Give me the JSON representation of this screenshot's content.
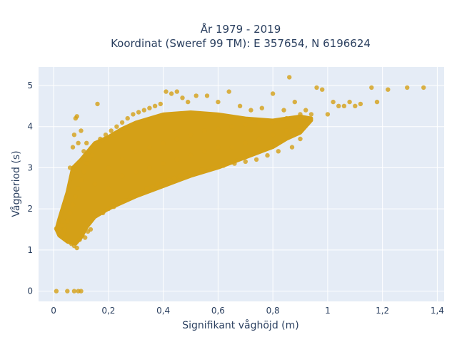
{
  "chart_data": {
    "type": "scatter",
    "title_line1": "År 1979 - 2019",
    "title_line2": "Koordinat (Sweref 99 TM): E 357654, N 6196624",
    "xlabel": "Signifikant våghöjd (m)",
    "ylabel": "Vågperiod (s)",
    "xlim": [
      -0.055,
      1.425
    ],
    "ylim": [
      -0.25,
      5.45
    ],
    "x_ticks": [
      0,
      0.2,
      0.4,
      0.6,
      0.8,
      1,
      1.2,
      1.4
    ],
    "x_tick_labels": [
      "0",
      "0,2",
      "0,4",
      "0,6",
      "0,8",
      "1",
      "1,2",
      "1,4"
    ],
    "y_ticks": [
      0,
      1,
      2,
      3,
      4,
      5
    ],
    "y_tick_labels": [
      "0",
      "1",
      "2",
      "3",
      "4",
      "5"
    ],
    "grid": true,
    "marker_color": "#D4A017",
    "plot_bg": "#E5ECF6",
    "series": [
      {
        "points": [
          [
            0.01,
            0.0
          ],
          [
            0.05,
            0.0
          ],
          [
            0.075,
            0.0
          ],
          [
            0.09,
            0.0
          ],
          [
            0.1,
            0.0
          ],
          [
            0.01,
            1.52
          ],
          [
            0.015,
            1.48
          ],
          [
            0.02,
            1.55
          ],
          [
            0.025,
            1.45
          ],
          [
            0.03,
            1.6
          ],
          [
            0.035,
            1.4
          ],
          [
            0.04,
            1.5
          ],
          [
            0.045,
            1.3
          ],
          [
            0.05,
            1.7
          ],
          [
            0.055,
            1.2
          ],
          [
            0.06,
            1.9
          ],
          [
            0.065,
            1.15
          ],
          [
            0.07,
            2.1
          ],
          [
            0.075,
            1.1
          ],
          [
            0.08,
            2.3
          ],
          [
            0.085,
            1.05
          ],
          [
            0.09,
            2.5
          ],
          [
            0.095,
            1.25
          ],
          [
            0.1,
            2.7
          ],
          [
            0.105,
            1.35
          ],
          [
            0.11,
            2.9
          ],
          [
            0.115,
            1.3
          ],
          [
            0.12,
            3.1
          ],
          [
            0.125,
            1.45
          ],
          [
            0.13,
            3.2
          ],
          [
            0.135,
            1.5
          ],
          [
            0.14,
            3.3
          ],
          [
            0.06,
            3.0
          ],
          [
            0.07,
            3.5
          ],
          [
            0.075,
            3.8
          ],
          [
            0.08,
            4.2
          ],
          [
            0.085,
            4.25
          ],
          [
            0.09,
            3.6
          ],
          [
            0.1,
            3.9
          ],
          [
            0.11,
            3.4
          ],
          [
            0.12,
            3.6
          ],
          [
            0.15,
            3.5
          ],
          [
            0.16,
            4.55
          ],
          [
            0.17,
            3.7
          ],
          [
            0.18,
            1.9
          ],
          [
            0.19,
            3.8
          ],
          [
            0.2,
            2.0
          ],
          [
            0.21,
            3.9
          ],
          [
            0.22,
            2.05
          ],
          [
            0.23,
            4.0
          ],
          [
            0.24,
            2.15
          ],
          [
            0.25,
            4.1
          ],
          [
            0.26,
            2.2
          ],
          [
            0.27,
            4.2
          ],
          [
            0.28,
            2.3
          ],
          [
            0.29,
            4.3
          ],
          [
            0.3,
            2.35
          ],
          [
            0.31,
            4.35
          ],
          [
            0.32,
            2.4
          ],
          [
            0.33,
            4.4
          ],
          [
            0.34,
            2.5
          ],
          [
            0.35,
            4.45
          ],
          [
            0.36,
            2.55
          ],
          [
            0.37,
            4.5
          ],
          [
            0.38,
            2.6
          ],
          [
            0.39,
            4.55
          ],
          [
            0.4,
            2.65
          ],
          [
            0.41,
            4.85
          ],
          [
            0.42,
            2.7
          ],
          [
            0.43,
            4.8
          ],
          [
            0.44,
            2.75
          ],
          [
            0.45,
            4.85
          ],
          [
            0.46,
            2.8
          ],
          [
            0.47,
            4.7
          ],
          [
            0.48,
            2.85
          ],
          [
            0.49,
            4.6
          ],
          [
            0.5,
            2.9
          ],
          [
            0.52,
            4.75
          ],
          [
            0.54,
            2.95
          ],
          [
            0.56,
            4.75
          ],
          [
            0.58,
            3.0
          ],
          [
            0.6,
            4.6
          ],
          [
            0.62,
            3.05
          ],
          [
            0.64,
            4.85
          ],
          [
            0.66,
            3.1
          ],
          [
            0.68,
            4.5
          ],
          [
            0.7,
            3.15
          ],
          [
            0.72,
            4.4
          ],
          [
            0.74,
            3.2
          ],
          [
            0.76,
            4.45
          ],
          [
            0.78,
            3.3
          ],
          [
            0.8,
            4.8
          ],
          [
            0.82,
            3.4
          ],
          [
            0.84,
            4.4
          ],
          [
            0.86,
            5.2
          ],
          [
            0.87,
            3.5
          ],
          [
            0.88,
            4.6
          ],
          [
            0.9,
            3.7
          ],
          [
            0.92,
            4.4
          ],
          [
            0.94,
            4.3
          ],
          [
            0.96,
            4.95
          ],
          [
            0.98,
            4.9
          ],
          [
            1.0,
            4.3
          ],
          [
            1.02,
            4.6
          ],
          [
            1.04,
            4.5
          ],
          [
            1.06,
            4.5
          ],
          [
            1.08,
            4.6
          ],
          [
            1.1,
            4.5
          ],
          [
            1.12,
            4.55
          ],
          [
            1.16,
            4.95
          ],
          [
            1.18,
            4.6
          ],
          [
            1.22,
            4.9
          ],
          [
            1.29,
            4.95
          ],
          [
            1.35,
            4.95
          ],
          [
            0.2,
            3.0
          ],
          [
            0.25,
            3.2
          ],
          [
            0.3,
            3.4
          ],
          [
            0.35,
            3.5
          ],
          [
            0.4,
            3.6
          ],
          [
            0.45,
            3.7
          ],
          [
            0.5,
            3.8
          ],
          [
            0.55,
            3.9
          ],
          [
            0.6,
            3.95
          ],
          [
            0.65,
            4.0
          ],
          [
            0.7,
            4.05
          ],
          [
            0.75,
            4.1
          ],
          [
            0.8,
            4.1
          ],
          [
            0.85,
            4.2
          ],
          [
            0.9,
            4.3
          ],
          [
            0.15,
            2.6
          ],
          [
            0.2,
            2.5
          ],
          [
            0.25,
            2.8
          ],
          [
            0.3,
            2.9
          ],
          [
            0.35,
            3.0
          ],
          [
            0.4,
            3.1
          ],
          [
            0.45,
            3.2
          ],
          [
            0.5,
            3.3
          ],
          [
            0.55,
            3.4
          ],
          [
            0.6,
            3.5
          ],
          [
            0.65,
            3.5
          ],
          [
            0.7,
            3.6
          ],
          [
            0.75,
            3.7
          ],
          [
            0.8,
            3.8
          ],
          [
            0.85,
            3.9
          ],
          [
            0.9,
            4.0
          ]
        ]
      }
    ]
  }
}
